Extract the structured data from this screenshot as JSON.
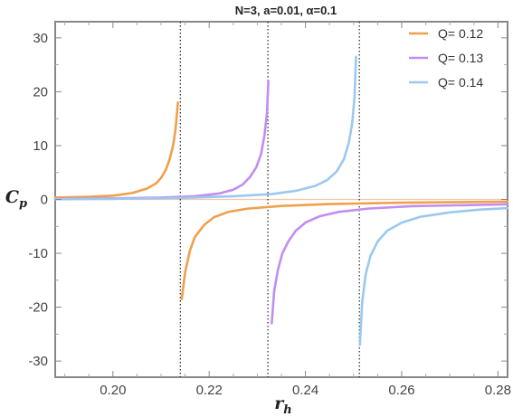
{
  "chart_data": {
    "type": "line",
    "title": "N=3, a=0.01, α=0.1",
    "xlabel": "r",
    "xlabel_sub": "h",
    "ylabel": "C",
    "ylabel_sub": "p",
    "xlim": [
      0.188,
      0.282
    ],
    "ylim": [
      -33,
      33
    ],
    "xticks": [
      0.2,
      0.22,
      0.24,
      0.26,
      0.28
    ],
    "xtick_labels": [
      "0.20",
      "0.22",
      "0.24",
      "0.26",
      "0.28"
    ],
    "yticks": [
      -30,
      -20,
      -10,
      0,
      10,
      20,
      30
    ],
    "ytick_labels": [
      "-30",
      "-20",
      "-10",
      "0",
      "10",
      "20",
      "30"
    ],
    "legend_position": "top-right",
    "grid": false,
    "asymptotes": [
      0.214,
      0.2322,
      0.2512
    ],
    "series": [
      {
        "name": "Q= 0.12",
        "color": "#f0a04b",
        "left_branch": [
          [
            0.188,
            0.35
          ],
          [
            0.195,
            0.5
          ],
          [
            0.2,
            0.7
          ],
          [
            0.204,
            1.2
          ],
          [
            0.207,
            2.0
          ],
          [
            0.209,
            3.0
          ],
          [
            0.21,
            4.0
          ],
          [
            0.211,
            5.5
          ],
          [
            0.2118,
            7.5
          ],
          [
            0.2125,
            10.0
          ],
          [
            0.213,
            13.0
          ],
          [
            0.2135,
            18.0
          ]
        ],
        "right_branch": [
          [
            0.2143,
            -18.5
          ],
          [
            0.215,
            -13.5
          ],
          [
            0.216,
            -9.5
          ],
          [
            0.217,
            -7.0
          ],
          [
            0.219,
            -4.7
          ],
          [
            0.221,
            -3.3
          ],
          [
            0.224,
            -2.3
          ],
          [
            0.228,
            -1.7
          ],
          [
            0.235,
            -1.2
          ],
          [
            0.245,
            -0.85
          ],
          [
            0.26,
            -0.6
          ],
          [
            0.282,
            -0.4
          ]
        ]
      },
      {
        "name": "Q= 0.13",
        "color": "#c28df0",
        "left_branch": [
          [
            0.188,
            0.1
          ],
          [
            0.2,
            0.2
          ],
          [
            0.21,
            0.35
          ],
          [
            0.217,
            0.6
          ],
          [
            0.222,
            1.1
          ],
          [
            0.225,
            1.8
          ],
          [
            0.227,
            2.8
          ],
          [
            0.2285,
            4.2
          ],
          [
            0.2298,
            6.0
          ],
          [
            0.2308,
            8.5
          ],
          [
            0.2315,
            12.0
          ],
          [
            0.232,
            16.0
          ],
          [
            0.2323,
            22.0
          ]
        ],
        "right_branch": [
          [
            0.233,
            -23.0
          ],
          [
            0.2335,
            -17.0
          ],
          [
            0.2343,
            -13.0
          ],
          [
            0.2352,
            -10.0
          ],
          [
            0.2365,
            -7.7
          ],
          [
            0.238,
            -5.8
          ],
          [
            0.24,
            -4.3
          ],
          [
            0.243,
            -3.1
          ],
          [
            0.247,
            -2.3
          ],
          [
            0.253,
            -1.7
          ],
          [
            0.262,
            -1.25
          ],
          [
            0.282,
            -0.9
          ]
        ]
      },
      {
        "name": "Q= 0.14",
        "color": "#9cc8f0",
        "left_branch": [
          [
            0.188,
            0.05
          ],
          [
            0.2,
            0.1
          ],
          [
            0.215,
            0.3
          ],
          [
            0.225,
            0.6
          ],
          [
            0.233,
            1.0
          ],
          [
            0.238,
            1.6
          ],
          [
            0.242,
            2.5
          ],
          [
            0.2445,
            3.6
          ],
          [
            0.2465,
            5.2
          ],
          [
            0.248,
            7.5
          ],
          [
            0.249,
            10.5
          ],
          [
            0.2497,
            14.0
          ],
          [
            0.2502,
            19.0
          ],
          [
            0.2505,
            26.5
          ]
        ],
        "right_branch": [
          [
            0.2513,
            -27.0
          ],
          [
            0.2518,
            -19.0
          ],
          [
            0.2525,
            -14.0
          ],
          [
            0.2535,
            -10.5
          ],
          [
            0.255,
            -7.8
          ],
          [
            0.257,
            -5.8
          ],
          [
            0.26,
            -4.3
          ],
          [
            0.264,
            -3.2
          ],
          [
            0.27,
            -2.4
          ],
          [
            0.276,
            -1.9
          ],
          [
            0.282,
            -1.6
          ]
        ]
      }
    ]
  }
}
